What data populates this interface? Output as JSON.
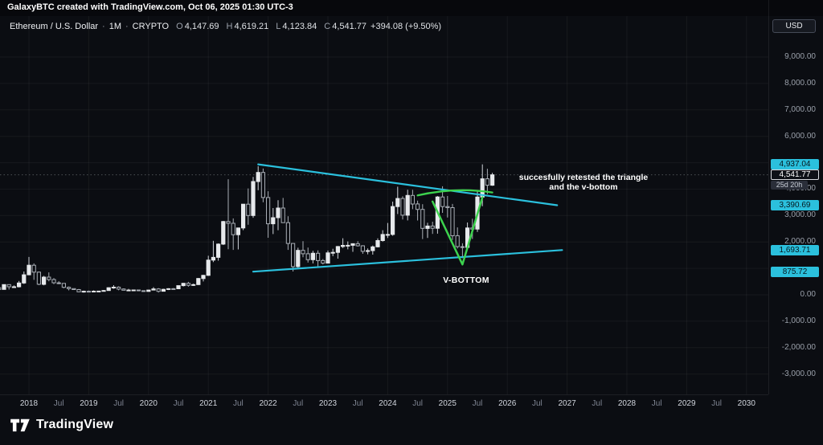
{
  "topbar": {
    "credit": "GalaxyBTC created with TradingView.com, Oct 06, 2025 01:30 UTC-3"
  },
  "header": {
    "symbol": "Ethereum / U.S. Dollar",
    "separator": "·",
    "interval": "1M",
    "market": "CRYPTO",
    "o_label": "O",
    "o": "4,147.69",
    "h_label": "H",
    "h": "4,619.21",
    "l_label": "L",
    "l": "4,123.84",
    "c_label": "C",
    "c": "4,541.77",
    "change": "+394.08 (+9.50%)"
  },
  "currency_button": {
    "label": "USD"
  },
  "annotations": {
    "retest_line1": "succesfully retested the triangle",
    "retest_line2": "and the v-bottom",
    "v_bottom": "V-BOTTOM"
  },
  "logo": {
    "text": "TradingView"
  },
  "price_axis": {
    "ticks": [
      {
        "text": "9,000.00",
        "value": 9000
      },
      {
        "text": "8,000.00",
        "value": 8000
      },
      {
        "text": "7,000.00",
        "value": 7000
      },
      {
        "text": "6,000.00",
        "value": 6000
      },
      {
        "text": "4,000.00",
        "value": 4000
      },
      {
        "text": "3,000.00",
        "value": 3000
      },
      {
        "text": "2,000.00",
        "value": 2000
      },
      {
        "text": "0.00",
        "value": 0
      },
      {
        "text": "-1,000.00",
        "value": -1000
      },
      {
        "text": "-2,000.00",
        "value": -2000
      },
      {
        "text": "-3,000.00",
        "value": -3000
      }
    ],
    "badges": [
      {
        "text": "4,937.04",
        "value": 4937.04,
        "style": "level"
      },
      {
        "text": "3,390.69",
        "value": 3390.69,
        "style": "level"
      },
      {
        "text": "1,693.71",
        "value": 1693.71,
        "style": "level"
      },
      {
        "text": "875.72",
        "value": 875.72,
        "style": "level"
      },
      {
        "text": "4,541.77",
        "value": 4541.77,
        "style": "last"
      },
      {
        "text": "25d 20h",
        "value": 4541.77,
        "style": "countdown"
      }
    ]
  },
  "time_axis": {
    "labels": [
      {
        "text": "2018",
        "m": 0,
        "major": true
      },
      {
        "text": "Jul",
        "m": 6,
        "major": false
      },
      {
        "text": "2019",
        "m": 12,
        "major": true
      },
      {
        "text": "Jul",
        "m": 18,
        "major": false
      },
      {
        "text": "2020",
        "m": 24,
        "major": true
      },
      {
        "text": "Jul",
        "m": 30,
        "major": false
      },
      {
        "text": "2021",
        "m": 36,
        "major": true
      },
      {
        "text": "Jul",
        "m": 42,
        "major": false
      },
      {
        "text": "2022",
        "m": 48,
        "major": true
      },
      {
        "text": "Jul",
        "m": 54,
        "major": false
      },
      {
        "text": "2023",
        "m": 60,
        "major": true
      },
      {
        "text": "Jul",
        "m": 66,
        "major": false
      },
      {
        "text": "2024",
        "m": 72,
        "major": true
      },
      {
        "text": "Jul",
        "m": 78,
        "major": false
      },
      {
        "text": "2025",
        "m": 84,
        "major": true
      },
      {
        "text": "Jul",
        "m": 90,
        "major": false
      },
      {
        "text": "2026",
        "m": 96,
        "major": true
      },
      {
        "text": "Jul",
        "m": 102,
        "major": false
      },
      {
        "text": "2027",
        "m": 108,
        "major": true
      },
      {
        "text": "Jul",
        "m": 114,
        "major": false
      },
      {
        "text": "2028",
        "m": 120,
        "major": true
      },
      {
        "text": "Jul",
        "m": 126,
        "major": false
      },
      {
        "text": "2029",
        "m": 132,
        "major": true
      },
      {
        "text": "Jul",
        "m": 138,
        "major": false
      },
      {
        "text": "2030",
        "m": 144,
        "major": true
      }
    ]
  },
  "chart_data": {
    "type": "candlestick",
    "title": "Ethereum / U.S. Dollar",
    "interval": "1M",
    "market": "CRYPTO",
    "currency": "USD",
    "last_price": 4541.77,
    "all_time_high": 4937.04,
    "ylim": [
      -3500,
      9800
    ],
    "x_range": [
      "2017-07",
      "2030-12"
    ],
    "colors": {
      "up": "#e7e9ec",
      "up_wick": "#cfd3d9",
      "down": "#a9aeb6",
      "down_fill": "#0c0e13",
      "trendline": "#2bc0dd",
      "v_drawing": "#3dd24e",
      "grid": "rgba(255,255,255,0.05)"
    },
    "candles": [
      [
        "2017-07",
        269,
        293,
        130,
        203
      ],
      [
        "2017-08",
        203,
        385,
        200,
        385
      ],
      [
        "2017-09",
        385,
        395,
        200,
        303
      ],
      [
        "2017-10",
        303,
        355,
        277,
        305
      ],
      [
        "2017-11",
        305,
        522,
        280,
        447
      ],
      [
        "2017-12",
        447,
        881,
        410,
        756
      ],
      [
        "2018-01",
        756,
        1432,
        742,
        1118
      ],
      [
        "2018-02",
        1118,
        1190,
        565,
        856
      ],
      [
        "2018-03",
        856,
        880,
        365,
        396
      ],
      [
        "2018-04",
        396,
        715,
        358,
        669
      ],
      [
        "2018-05",
        669,
        848,
        510,
        577
      ],
      [
        "2018-06",
        577,
        633,
        404,
        454
      ],
      [
        "2018-07",
        454,
        515,
        403,
        433
      ],
      [
        "2018-08",
        433,
        436,
        247,
        283
      ],
      [
        "2018-09",
        283,
        314,
        167,
        233
      ],
      [
        "2018-10",
        233,
        238,
        185,
        197
      ],
      [
        "2018-11",
        197,
        222,
        102,
        113
      ],
      [
        "2018-12",
        113,
        157,
        82,
        133
      ],
      [
        "2019-01",
        133,
        161,
        103,
        107
      ],
      [
        "2019-02",
        107,
        166,
        103,
        137
      ],
      [
        "2019-03",
        137,
        149,
        124,
        141
      ],
      [
        "2019-04",
        141,
        182,
        140,
        162
      ],
      [
        "2019-05",
        162,
        282,
        160,
        268
      ],
      [
        "2019-06",
        268,
        366,
        225,
        290
      ],
      [
        "2019-07",
        290,
        319,
        170,
        218
      ],
      [
        "2019-08",
        218,
        239,
        163,
        172
      ],
      [
        "2019-09",
        172,
        224,
        152,
        180
      ],
      [
        "2019-10",
        180,
        199,
        151,
        182
      ],
      [
        "2019-11",
        182,
        192,
        135,
        154
      ],
      [
        "2019-12",
        154,
        158,
        116,
        129
      ],
      [
        "2020-01",
        129,
        188,
        126,
        180
      ],
      [
        "2020-02",
        180,
        289,
        177,
        223
      ],
      [
        "2020-03",
        223,
        253,
        86,
        133
      ],
      [
        "2020-04",
        133,
        227,
        131,
        206
      ],
      [
        "2020-05",
        206,
        248,
        179,
        231
      ],
      [
        "2020-06",
        231,
        254,
        216,
        226
      ],
      [
        "2020-07",
        226,
        347,
        217,
        346
      ],
      [
        "2020-08",
        346,
        446,
        317,
        434
      ],
      [
        "2020-09",
        434,
        489,
        308,
        359
      ],
      [
        "2020-10",
        359,
        420,
        333,
        386
      ],
      [
        "2020-11",
        386,
        635,
        370,
        616
      ],
      [
        "2020-12",
        616,
        758,
        505,
        737
      ],
      [
        "2021-01",
        737,
        1477,
        716,
        1314
      ],
      [
        "2021-02",
        1314,
        2042,
        1236,
        1418
      ],
      [
        "2021-03",
        1418,
        1947,
        1293,
        1919
      ],
      [
        "2021-04",
        1919,
        2798,
        1886,
        2772
      ],
      [
        "2021-05",
        2772,
        4374,
        1728,
        2706
      ],
      [
        "2021-06",
        2706,
        2891,
        1700,
        2274
      ],
      [
        "2021-07",
        2274,
        2541,
        1718,
        2530
      ],
      [
        "2021-08",
        2530,
        3342,
        2447,
        3430
      ],
      [
        "2021-09",
        3430,
        4027,
        2652,
        3001
      ],
      [
        "2021-10",
        3001,
        4460,
        2917,
        4288
      ],
      [
        "2021-11",
        4288,
        4868,
        3959,
        4631
      ],
      [
        "2021-12",
        4631,
        4780,
        3503,
        3683
      ],
      [
        "2022-01",
        3683,
        3919,
        2160,
        2688
      ],
      [
        "2022-02",
        2688,
        3283,
        2300,
        2919
      ],
      [
        "2022-03",
        2919,
        3582,
        2445,
        3283
      ],
      [
        "2022-04",
        3283,
        3666,
        2727,
        2730
      ],
      [
        "2022-05",
        2730,
        2974,
        1700,
        1942
      ],
      [
        "2022-06",
        1942,
        1956,
        881,
        1067
      ],
      [
        "2022-07",
        1067,
        1783,
        1005,
        1681
      ],
      [
        "2022-08",
        1681,
        2031,
        1421,
        1554
      ],
      [
        "2022-09",
        1554,
        1789,
        1220,
        1328
      ],
      [
        "2022-10",
        1328,
        1663,
        1190,
        1572
      ],
      [
        "2022-11",
        1572,
        1680,
        1073,
        1294
      ],
      [
        "2022-12",
        1294,
        1352,
        1150,
        1196
      ],
      [
        "2023-01",
        1196,
        1674,
        1191,
        1586
      ],
      [
        "2023-02",
        1586,
        1743,
        1461,
        1605
      ],
      [
        "2023-03",
        1605,
        1846,
        1368,
        1827
      ],
      [
        "2023-04",
        1827,
        2141,
        1771,
        1869
      ],
      [
        "2023-05",
        1869,
        2018,
        1721,
        1873
      ],
      [
        "2023-06",
        1873,
        1946,
        1626,
        1933
      ],
      [
        "2023-07",
        1933,
        2029,
        1825,
        1855
      ],
      [
        "2023-08",
        1855,
        1875,
        1550,
        1645
      ],
      [
        "2023-09",
        1645,
        1753,
        1531,
        1671
      ],
      [
        "2023-10",
        1671,
        1864,
        1520,
        1815
      ],
      [
        "2023-11",
        1815,
        2137,
        1793,
        2051
      ],
      [
        "2023-12",
        2051,
        2445,
        2012,
        2282
      ],
      [
        "2024-01",
        2282,
        2717,
        2150,
        2283
      ],
      [
        "2024-02",
        2283,
        3527,
        2235,
        3341
      ],
      [
        "2024-03",
        3341,
        4093,
        3055,
        3647
      ],
      [
        "2024-04",
        3647,
        3728,
        2850,
        3014
      ],
      [
        "2024-05",
        3014,
        3977,
        2817,
        3762
      ],
      [
        "2024-06",
        3762,
        3974,
        3240,
        3438
      ],
      [
        "2024-07",
        3438,
        3563,
        2814,
        3232
      ],
      [
        "2024-08",
        3232,
        3431,
        2111,
        2513
      ],
      [
        "2024-09",
        2513,
        2725,
        2150,
        2603
      ],
      [
        "2024-10",
        2603,
        2768,
        2306,
        2518
      ],
      [
        "2024-11",
        2518,
        3738,
        2313,
        3703
      ],
      [
        "2024-12",
        3703,
        4107,
        3101,
        3337
      ],
      [
        "2025-01",
        3337,
        3740,
        2924,
        3300
      ],
      [
        "2025-02",
        3300,
        3440,
        2077,
        2237
      ],
      [
        "2025-03",
        2237,
        2550,
        1754,
        1822
      ],
      [
        "2025-04",
        1822,
        1950,
        1385,
        1794
      ],
      [
        "2025-05",
        1794,
        2738,
        1729,
        2530
      ],
      [
        "2025-06",
        2530,
        2880,
        2112,
        2486
      ],
      [
        "2025-07",
        2486,
        3940,
        2380,
        3700
      ],
      [
        "2025-08",
        3700,
        4937.04,
        3355,
        4392
      ],
      [
        "2025-09",
        4392,
        4770,
        3813,
        4147.69
      ],
      [
        "2025-10",
        4147.69,
        4619.21,
        4123.84,
        4541.77
      ]
    ],
    "trendlines": [
      {
        "name": "triangle-upper-trendline",
        "t1": "2021-11",
        "p1": 4937.04,
        "t2": "2026-11",
        "p2": 3390.69
      },
      {
        "name": "triangle-lower-trendline",
        "t1": "2021-10",
        "p1": 875.72,
        "t2": "2026-12",
        "p2": 1693.71
      }
    ],
    "v_shape": {
      "arc": [
        [
          "2024-07",
          3760
        ],
        [
          "2025-10",
          3875
        ]
      ],
      "v": [
        [
          "2024-10",
          3530
        ],
        [
          "2025-04",
          1150
        ],
        [
          "2025-08",
          3690
        ]
      ]
    }
  }
}
